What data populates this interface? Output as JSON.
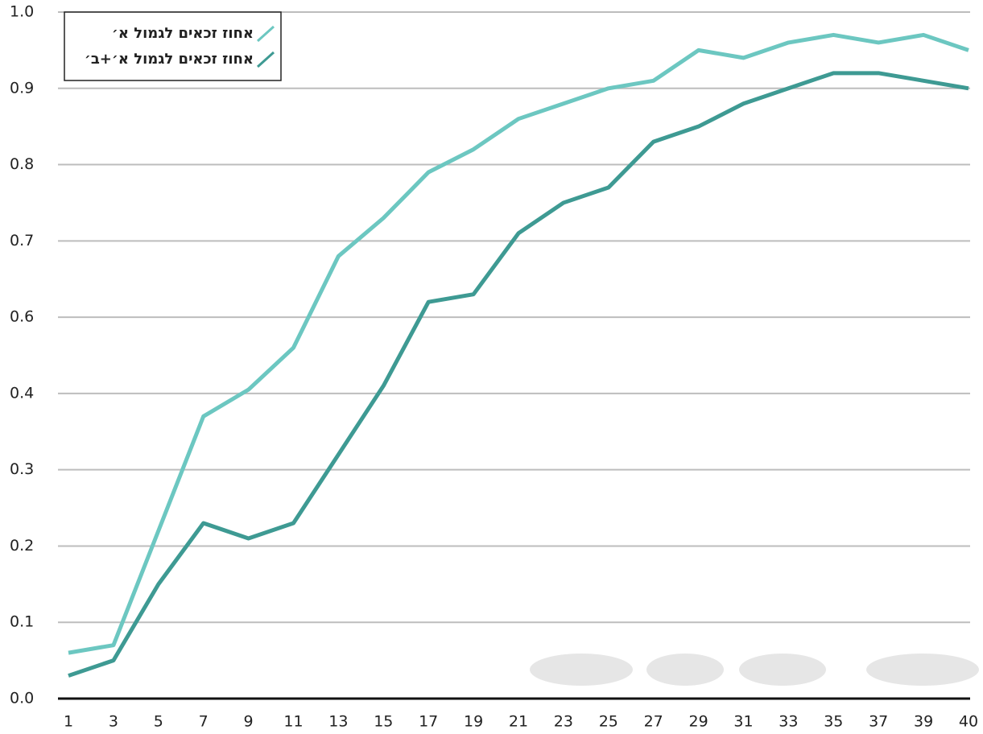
{
  "chart_data": {
    "type": "line",
    "categories": [
      "1",
      "3",
      "5",
      "7",
      "9",
      "11",
      "13",
      "15",
      "17",
      "19",
      "21",
      "23",
      "25",
      "27",
      "29",
      "31",
      "33",
      "35",
      "37",
      "39",
      "40"
    ],
    "series": [
      {
        "name": "אחוז זכאים לגמול א׳",
        "color": "#6cc7c1",
        "values": [
          0.06,
          0.07,
          0.22,
          0.37,
          0.41,
          0.52,
          0.68,
          0.73,
          0.79,
          0.82,
          0.86,
          0.88,
          0.9,
          0.91,
          0.95,
          0.94,
          0.96,
          0.97,
          0.96,
          0.97,
          0.95
        ]
      },
      {
        "name": "אחוז זכאים לגמול א׳+ב׳",
        "color": "#3e9a93",
        "values": [
          0.03,
          0.05,
          0.15,
          0.23,
          0.21,
          0.23,
          0.32,
          0.42,
          0.62,
          0.63,
          0.71,
          0.75,
          0.77,
          0.83,
          0.85,
          0.88,
          0.9,
          0.92,
          0.92,
          0.91,
          0.9
        ]
      }
    ],
    "ylim": [
      0,
      1
    ],
    "yticks": [
      {
        "value": 1,
        "label": "1.0"
      },
      0.9,
      0.8,
      0.7,
      0.6,
      0.4,
      0.3,
      0.2,
      0.1,
      {
        "value": 0,
        "label": "0.0"
      }
    ],
    "grid": true,
    "legend": "top-left"
  }
}
